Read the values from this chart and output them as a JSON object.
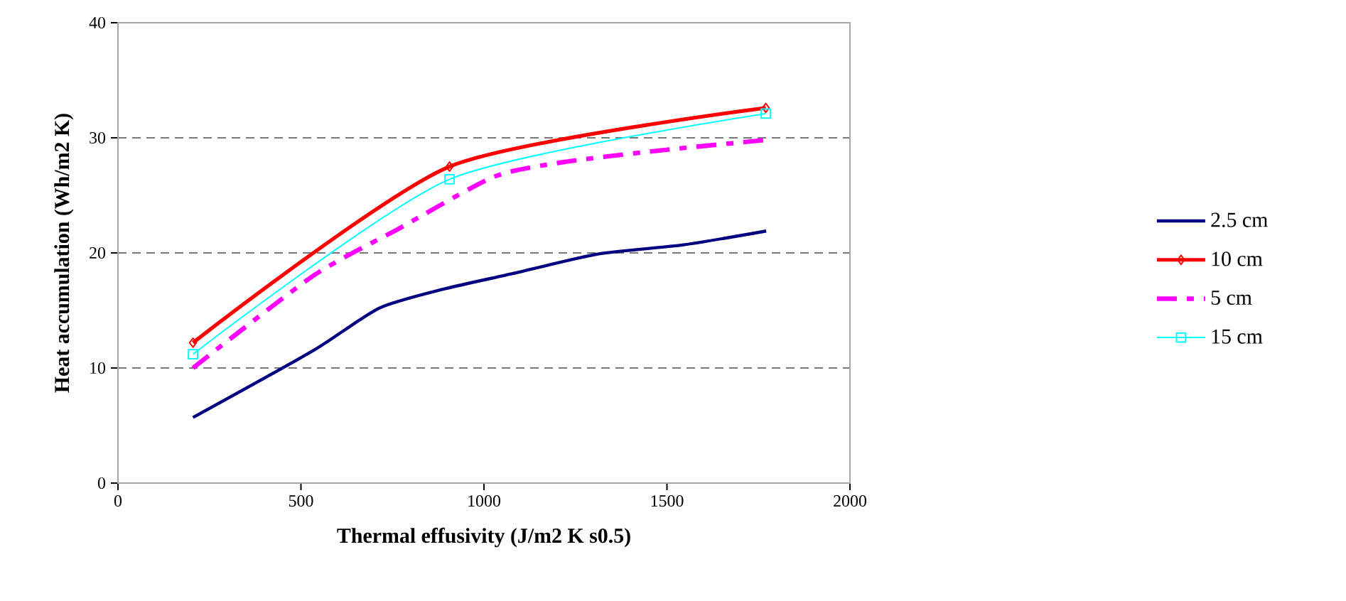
{
  "chart_data": {
    "type": "line",
    "xlabel": "Thermal effusivity (J/m2 K s0.5)",
    "ylabel": "Heat accumulation (Wh/m2 K)",
    "xlim": [
      0,
      2000
    ],
    "xticks": [
      0,
      500,
      1000,
      1500,
      2000
    ],
    "ylim": [
      0,
      40
    ],
    "yticks": [
      0,
      10,
      20,
      30,
      40
    ],
    "grid": "y",
    "legend": "right",
    "series": [
      {
        "name": "2.5 cm",
        "color": "#000080",
        "line_style": "solid",
        "marker": "none",
        "x": [
          205,
          533,
          714,
          896,
          1078,
          1311,
          1545,
          1771
        ],
        "values": [
          5.7,
          11.5,
          15.2,
          16.9,
          18.2,
          19.9,
          20.7,
          21.9
        ]
      },
      {
        "name": "10 cm",
        "color": "#ff0000",
        "line_style": "solid",
        "marker": "diamond",
        "x": [
          205,
          906,
          1770
        ],
        "values": [
          12.2,
          27.5,
          32.6
        ]
      },
      {
        "name": "5 cm",
        "color": "#ff00ff",
        "line_style": "dashed",
        "marker": "none",
        "x": [
          205,
          533,
          767,
          1026,
          1220,
          1480,
          1766
        ],
        "values": [
          10.0,
          18.0,
          22.1,
          26.6,
          27.9,
          28.9,
          29.8
        ]
      },
      {
        "name": "15 cm",
        "color": "#00ffff",
        "line_style": "solid",
        "marker": "square",
        "x": [
          205,
          906,
          1770
        ],
        "values": [
          11.2,
          26.4,
          32.1
        ]
      }
    ]
  }
}
